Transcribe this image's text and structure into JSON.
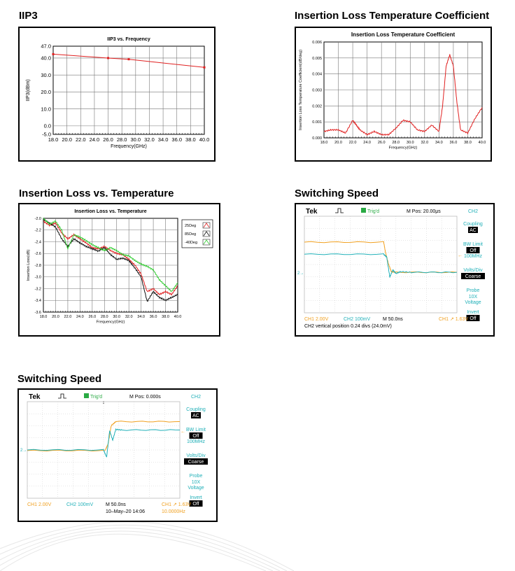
{
  "panels": {
    "iip3": {
      "heading": "IIP3"
    },
    "iltc": {
      "heading": "Insertion Loss Temperature Coefficient"
    },
    "ilt": {
      "heading": "Insertion Loss vs. Temperature"
    },
    "sw1": {
      "heading": "Switching Speed"
    },
    "sw2": {
      "heading": "Switching Speed"
    }
  },
  "colors": {
    "red": "#e02020",
    "black": "#111111",
    "green": "#33cc33",
    "orange": "#f0a020",
    "cyan": "#20b0b8"
  },
  "chart_data": [
    {
      "id": "iip3",
      "type": "line",
      "title": "IIP3 vs. Frequency",
      "xlabel": "Frequency(GHz)",
      "ylabel": "IIP3(dBm)",
      "xlim": [
        18,
        40
      ],
      "ylim": [
        -5,
        47
      ],
      "xticks": [
        "18.0",
        "20.0",
        "22.0",
        "24.0",
        "26.0",
        "28.0",
        "30.0",
        "32.0",
        "34.0",
        "36.0",
        "38.0",
        "40.0"
      ],
      "yticks": [
        "47.0",
        "40.0",
        "30.0",
        "20.0",
        "10.0",
        "0.0",
        "-5.0"
      ],
      "ytick_values": [
        47,
        40,
        30,
        20,
        10,
        0,
        -5
      ],
      "grid": true,
      "series": [
        {
          "x": [
            18,
            26,
            29,
            40
          ],
          "y": [
            42.3,
            40.0,
            39.3,
            34.5
          ]
        }
      ]
    },
    {
      "id": "iltc",
      "type": "line",
      "title": "Insertion Loss Temperature Coefficient",
      "xlabel": "Frequency(GHz)",
      "ylabel": "Insertion Loss Temperature Coefficient(dB/deg)",
      "xlim": [
        18,
        40
      ],
      "ylim": [
        0,
        0.006
      ],
      "xticks": [
        "18.0",
        "20.0",
        "22.0",
        "24.0",
        "26.0",
        "28.0",
        "30.0",
        "32.0",
        "34.0",
        "36.0",
        "38.0",
        "40.0"
      ],
      "yticks": [
        "0.000",
        "0.001",
        "0.002",
        "0.003",
        "0.004",
        "0.005",
        "0.006"
      ],
      "ytick_values": [
        0,
        0.001,
        0.002,
        0.003,
        0.004,
        0.005,
        0.006
      ],
      "grid": true,
      "series": [
        {
          "x": [
            18,
            19,
            20,
            21,
            22,
            22.5,
            23,
            24,
            25,
            26,
            27,
            28,
            29,
            30,
            31,
            32,
            33,
            34,
            34.5,
            35,
            35.5,
            36,
            36.5,
            37,
            38,
            39,
            40
          ],
          "y": [
            0.0004,
            0.0005,
            0.0005,
            0.0003,
            0.0011,
            0.0008,
            0.0005,
            0.0002,
            0.0004,
            0.0002,
            0.0002,
            0.0006,
            0.0011,
            0.001,
            0.0005,
            0.0004,
            0.0008,
            0.0004,
            0.002,
            0.0045,
            0.0052,
            0.0045,
            0.0022,
            0.0005,
            0.0003,
            0.0012,
            0.0019
          ]
        }
      ]
    },
    {
      "id": "ilt",
      "type": "line",
      "title": "Insertion Loss vs. Temperature",
      "xlabel": "Frequency(GHz)",
      "ylabel": "Insertion Loss(dB)",
      "xlim": [
        18,
        40
      ],
      "ylim": [
        -3.6,
        -2.0
      ],
      "xticks": [
        "18.0",
        "20.0",
        "22.0",
        "24.0",
        "26.0",
        "28.0",
        "30.0",
        "32.0",
        "34.0",
        "36.0",
        "38.0",
        "40.0"
      ],
      "yticks": [
        "-2.0",
        "-2.2",
        "-2.4",
        "-2.6",
        "-2.8",
        "-3.0",
        "-3.2",
        "-3.4",
        "-3.6"
      ],
      "ytick_values": [
        -2.0,
        -2.2,
        -2.4,
        -2.6,
        -2.8,
        -3.0,
        -3.2,
        -3.4,
        -3.6
      ],
      "grid": true,
      "legend_position": "right",
      "series": [
        {
          "name": "25Deg",
          "color": "#e02020",
          "x": [
            18,
            19,
            20,
            21,
            22,
            23,
            24,
            25,
            26,
            27,
            28,
            29,
            30,
            31,
            32,
            33,
            34,
            35,
            36,
            37,
            38,
            39,
            40
          ],
          "y": [
            -2.05,
            -2.12,
            -2.08,
            -2.25,
            -2.35,
            -2.28,
            -2.35,
            -2.42,
            -2.5,
            -2.52,
            -2.48,
            -2.55,
            -2.6,
            -2.62,
            -2.7,
            -2.8,
            -2.95,
            -3.25,
            -3.2,
            -3.3,
            -3.25,
            -3.3,
            -3.15
          ]
        },
        {
          "name": "85Deg",
          "color": "#111111",
          "x": [
            18,
            19,
            20,
            21,
            22,
            23,
            24,
            25,
            26,
            27,
            28,
            29,
            30,
            31,
            32,
            33,
            34,
            35,
            36,
            37,
            38,
            39,
            40
          ],
          "y": [
            -2.02,
            -2.08,
            -2.15,
            -2.35,
            -2.48,
            -2.35,
            -2.42,
            -2.48,
            -2.52,
            -2.56,
            -2.5,
            -2.62,
            -2.7,
            -2.68,
            -2.72,
            -2.85,
            -3.0,
            -3.42,
            -3.25,
            -3.35,
            -3.4,
            -3.35,
            -3.3
          ]
        },
        {
          "name": "-40Deg",
          "color": "#33cc33",
          "x": [
            18,
            19,
            20,
            21,
            22,
            23,
            24,
            25,
            26,
            27,
            28,
            29,
            30,
            31,
            32,
            33,
            34,
            35,
            36,
            37,
            38,
            39,
            40
          ],
          "y": [
            -2.0,
            -2.1,
            -2.05,
            -2.2,
            -2.52,
            -2.28,
            -2.32,
            -2.38,
            -2.45,
            -2.5,
            -2.55,
            -2.5,
            -2.55,
            -2.62,
            -2.64,
            -2.72,
            -2.78,
            -2.82,
            -2.88,
            -3.05,
            -3.15,
            -3.25,
            -3.1
          ]
        }
      ]
    },
    {
      "id": "sw1",
      "type": "line",
      "header": {
        "brand": "Tek",
        "trig": "Trig'd",
        "mpos": "M Pos: 20.00μs",
        "ch": "CH2"
      },
      "menu": [
        {
          "label": "Coupling",
          "value": "AC"
        },
        {
          "label": "BW Limit",
          "value": "Off",
          "sub": "100MHz"
        },
        {
          "label": "Volts/Div",
          "value": "Coarse"
        },
        {
          "label": "Probe",
          "sub": "10X",
          "sub2": "Voltage"
        },
        {
          "label": "Invert",
          "value": "Off"
        }
      ],
      "status1": {
        "ch1": "CH1  2.00V",
        "ch2": "CH2  100mV",
        "m": "M 50.0ns",
        "trig": "CH1 ↗ 1.63V"
      },
      "status2": "CH2 vertical position 0.24 divs (24.0mV)",
      "series": [
        {
          "name": "CH1",
          "color": "#f0a020",
          "x": [
            0,
            5.2,
            5.3,
            5.5,
            5.7,
            6,
            10
          ],
          "y": [
            2.55,
            2.55,
            1.8,
            0.8,
            0.1,
            0.05,
            0.05
          ]
        },
        {
          "name": "CH2",
          "color": "#20b0b8",
          "x": [
            0,
            5.2,
            5.4,
            5.6,
            5.8,
            6,
            6.3,
            7,
            10
          ],
          "y": [
            1.55,
            1.55,
            1.3,
            -0.35,
            0.25,
            -0.05,
            0.1,
            0.05,
            0.05
          ]
        }
      ]
    },
    {
      "id": "sw2",
      "type": "line",
      "header": {
        "brand": "Tek",
        "trig": "Trig'd",
        "mpos": "M Pos: 0.000s",
        "ch": "CH2"
      },
      "menu": [
        {
          "label": "Coupling",
          "value": "AC"
        },
        {
          "label": "BW Limit",
          "value": "Off",
          "sub": "100MHz"
        },
        {
          "label": "Volts/Div",
          "value": "Coarse"
        },
        {
          "label": "Probe",
          "sub": "10X",
          "sub2": "Voltage"
        },
        {
          "label": "Invert",
          "value": "Off"
        }
      ],
      "status1": {
        "ch1": "CH1  2.00V",
        "ch2": "CH2  100mV",
        "m": "M 50.0ns",
        "trig": "CH1 ↗ 1.63V"
      },
      "status2": {
        "date": "10–May–20 14:06",
        "freq": "10.0000Hz"
      },
      "series": [
        {
          "name": "CH1",
          "color": "#f0a020",
          "x": [
            0,
            5.1,
            5.3,
            5.5,
            5.8,
            10
          ],
          "y": [
            -0.05,
            -0.05,
            0.5,
            2.0,
            2.35,
            2.35
          ]
        },
        {
          "name": "CH2",
          "color": "#20b0b8",
          "x": [
            0,
            5.0,
            5.2,
            5.4,
            5.6,
            5.8,
            6.2,
            10
          ],
          "y": [
            0,
            0,
            -0.6,
            1.6,
            0.8,
            1.7,
            1.65,
            1.65
          ]
        }
      ]
    }
  ]
}
